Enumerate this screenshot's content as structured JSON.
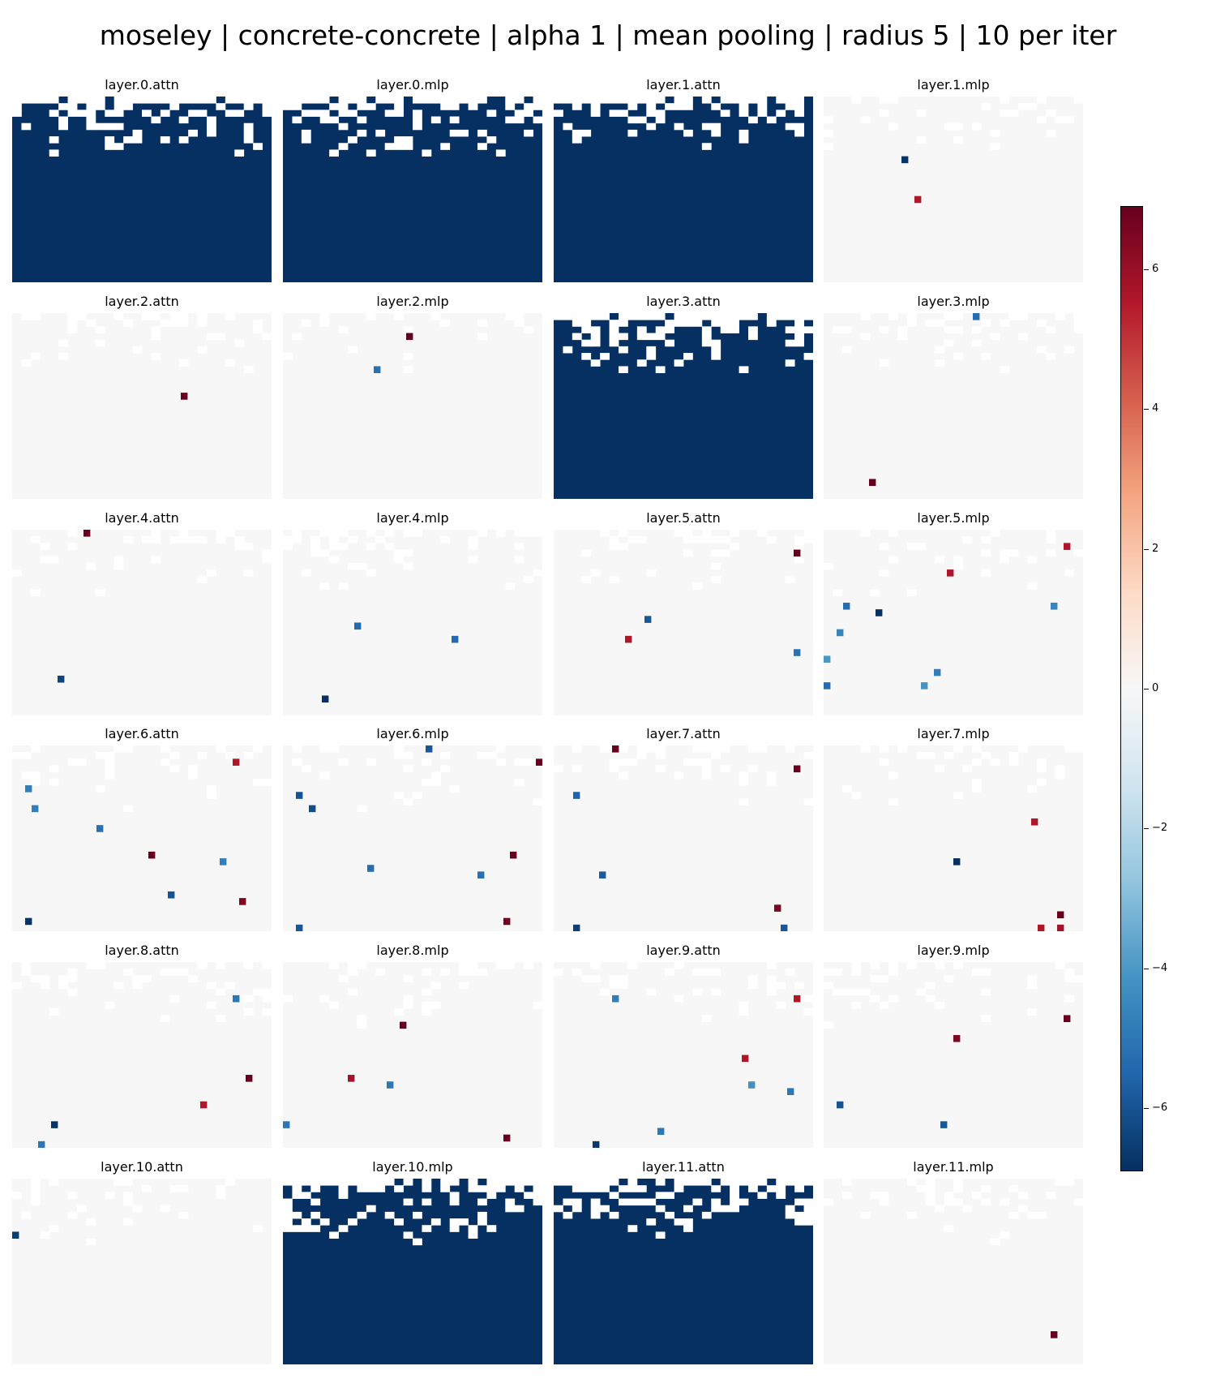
{
  "title": "moseley | concrete-concrete | alpha 1 | mean pooling | radius 5 | 10 per iter",
  "chart_data": {
    "type": "heatmap",
    "grid": {
      "rows": 28,
      "cols": 28
    },
    "colormap": "RdBu_r",
    "vmin": -6.9,
    "vmax": 6.9,
    "colorbar": {
      "ticks": [
        6,
        4,
        2,
        0,
        -2,
        -4,
        -6
      ],
      "labels": [
        "6",
        "4",
        "2",
        "0",
        "−2",
        "−4",
        "−6"
      ]
    },
    "palette": {
      "background": "#ffffff",
      "neutral": "#f7f7f7",
      "saturated_low": "#053061",
      "saturated_high": "#67001f"
    },
    "panels": [
      {
        "name": "layer.0.attn",
        "mode": "dense",
        "value": -6.9,
        "threshold": 9,
        "seed": 11
      },
      {
        "name": "layer.0.mlp",
        "mode": "dense",
        "value": -6.9,
        "threshold": 9,
        "seed": 23
      },
      {
        "name": "layer.1.attn",
        "mode": "dense",
        "value": -6.9,
        "threshold": 8,
        "seed": 37
      },
      {
        "name": "layer.1.mlp",
        "mode": "sparse",
        "seed": 41,
        "cells": [
          [
            9,
            12,
            -6.8
          ],
          [
            15,
            14,
            5.6
          ]
        ]
      },
      {
        "name": "layer.2.attn",
        "mode": "sparse",
        "seed": 53,
        "cells": [
          [
            12,
            26,
            6.9
          ]
        ]
      },
      {
        "name": "layer.2.mlp",
        "mode": "sparse",
        "seed": 61,
        "cells": [
          [
            3,
            19,
            6.9
          ],
          [
            8,
            14,
            -5.2
          ]
        ]
      },
      {
        "name": "layer.3.attn",
        "mode": "dense",
        "value": -6.9,
        "threshold": 10,
        "seed": 71
      },
      {
        "name": "layer.3.mlp",
        "mode": "sparse",
        "seed": 79,
        "cells": [
          [
            0,
            23,
            -5.3
          ],
          [
            25,
            7,
            6.9
          ]
        ]
      },
      {
        "name": "layer.4.attn",
        "mode": "sparse",
        "seed": 83,
        "cells": [
          [
            0,
            11,
            6.9
          ],
          [
            22,
            7,
            -6.4
          ]
        ]
      },
      {
        "name": "layer.4.mlp",
        "mode": "sparse",
        "seed": 97,
        "cells": [
          [
            14,
            11,
            -5.4
          ],
          [
            16,
            26,
            -5.4
          ],
          [
            25,
            6,
            -6.9
          ]
        ]
      },
      {
        "name": "layer.5.attn",
        "mode": "sparse",
        "seed": 101,
        "cells": [
          [
            3,
            37,
            6.9
          ],
          [
            13,
            14,
            -5.9
          ],
          [
            16,
            11,
            5.6
          ],
          [
            18,
            37,
            -5.1
          ]
        ]
      },
      {
        "name": "layer.5.mlp",
        "mode": "sparse",
        "seed": 103,
        "cells": [
          [
            2,
            37,
            5.6
          ],
          [
            6,
            19,
            5.6
          ],
          [
            11,
            3,
            -5.3
          ],
          [
            12,
            8,
            -6.9
          ],
          [
            11,
            35,
            -4.6
          ],
          [
            15,
            2,
            -4.6
          ],
          [
            19,
            0,
            -4.0
          ],
          [
            21,
            17,
            -4.8
          ],
          [
            23,
            0,
            -5.3
          ],
          [
            23,
            15,
            -4.1
          ]
        ]
      },
      {
        "name": "layer.6.attn",
        "mode": "sparse",
        "seed": 107,
        "cells": [
          [
            2,
            34,
            5.6
          ],
          [
            6,
            2,
            -4.8
          ],
          [
            9,
            3,
            -4.8
          ],
          [
            12,
            13,
            -5.2
          ],
          [
            16,
            21,
            6.9
          ],
          [
            17,
            32,
            -4.8
          ],
          [
            22,
            24,
            -6.0
          ],
          [
            23,
            35,
            6.5
          ],
          [
            26,
            2,
            -6.8
          ]
        ]
      },
      {
        "name": "layer.6.mlp",
        "mode": "sparse",
        "seed": 109,
        "cells": [
          [
            0,
            22,
            -5.9
          ],
          [
            2,
            39,
            6.9
          ],
          [
            7,
            2,
            -6.0
          ],
          [
            9,
            4,
            -6.2
          ],
          [
            16,
            35,
            6.9
          ],
          [
            18,
            13,
            -5.3
          ],
          [
            19,
            30,
            -5.2
          ],
          [
            26,
            34,
            6.7
          ],
          [
            27,
            2,
            -5.9
          ]
        ]
      },
      {
        "name": "layer.7.attn",
        "mode": "sparse",
        "seed": 113,
        "cells": [
          [
            0,
            9,
            6.9
          ],
          [
            3,
            37,
            6.9
          ],
          [
            7,
            3,
            -5.6
          ],
          [
            19,
            7,
            -5.8
          ],
          [
            24,
            34,
            6.5
          ],
          [
            27,
            3,
            -6.5
          ],
          [
            27,
            35,
            -5.9
          ]
        ]
      },
      {
        "name": "layer.7.mlp",
        "mode": "sparse",
        "seed": 127,
        "cells": [
          [
            11,
            32,
            5.6
          ],
          [
            17,
            20,
            -6.9
          ],
          [
            25,
            36,
            6.9
          ],
          [
            27,
            33,
            5.6
          ],
          [
            27,
            36,
            5.8
          ]
        ]
      },
      {
        "name": "layer.8.attn",
        "mode": "sparse",
        "seed": 131,
        "cells": [
          [
            5,
            34,
            -5.0
          ],
          [
            17,
            36,
            6.9
          ],
          [
            21,
            29,
            5.6
          ],
          [
            24,
            6,
            -6.8
          ],
          [
            27,
            4,
            -5.0
          ]
        ]
      },
      {
        "name": "layer.8.mlp",
        "mode": "sparse",
        "seed": 137,
        "cells": [
          [
            9,
            18,
            6.9
          ],
          [
            17,
            10,
            5.8
          ],
          [
            18,
            16,
            -5.0
          ],
          [
            24,
            0,
            -5.0
          ],
          [
            26,
            34,
            6.9
          ]
        ]
      },
      {
        "name": "layer.9.attn",
        "mode": "sparse",
        "seed": 139,
        "cells": [
          [
            5,
            9,
            -4.8
          ],
          [
            5,
            37,
            5.6
          ],
          [
            14,
            29,
            5.6
          ],
          [
            18,
            30,
            -4.2
          ],
          [
            19,
            36,
            -5.0
          ],
          [
            25,
            16,
            -5.0
          ],
          [
            27,
            6,
            -6.7
          ]
        ]
      },
      {
        "name": "layer.9.mlp",
        "mode": "sparse",
        "seed": 149,
        "cells": [
          [
            8,
            37,
            6.9
          ],
          [
            11,
            20,
            6.5
          ],
          [
            21,
            2,
            -6.0
          ],
          [
            24,
            18,
            -5.9
          ]
        ]
      },
      {
        "name": "layer.10.attn",
        "mode": "sparse",
        "seed": 151,
        "cells": [
          [
            8,
            0,
            -6.6
          ]
        ]
      },
      {
        "name": "layer.10.mlp",
        "mode": "dense",
        "value": -6.9,
        "threshold": 10,
        "seed": 157
      },
      {
        "name": "layer.11.attn",
        "mode": "dense",
        "value": -6.9,
        "threshold": 9,
        "seed": 163
      },
      {
        "name": "layer.11.mlp",
        "mode": "sparse",
        "seed": 167,
        "cells": [
          [
            23,
            35,
            6.9
          ]
        ]
      }
    ]
  }
}
